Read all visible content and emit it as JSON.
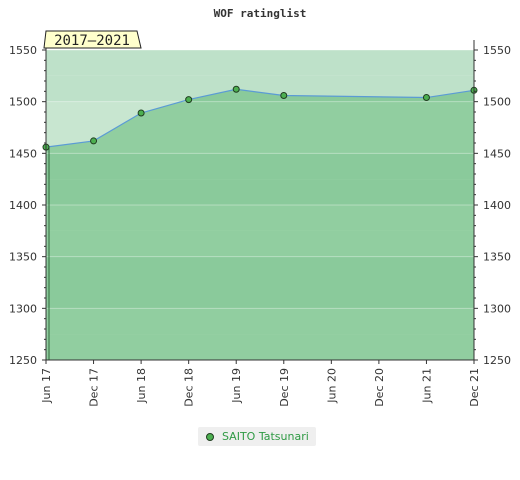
{
  "chart_data": {
    "type": "line",
    "title": "WOF ratinglist",
    "period_label": "2017–2021",
    "x": [
      "Jun 17",
      "Dec 17",
      "Jun 18",
      "Dec 18",
      "Jun 19",
      "Dec 19",
      "Jun 20",
      "Dec 20",
      "Jun 21",
      "Dec 21"
    ],
    "series": [
      {
        "name": "SAITO Tatsunari",
        "points": [
          {
            "x": "Jun 17",
            "y": 1456
          },
          {
            "x": "Dec 17",
            "y": 1462
          },
          {
            "x": "Jun 18",
            "y": 1489
          },
          {
            "x": "Dec 18",
            "y": 1502
          },
          {
            "x": "Jun 19",
            "y": 1512
          },
          {
            "x": "Dec 19",
            "y": 1506
          },
          {
            "x": "Jun 21",
            "y": 1504
          },
          {
            "x": "Dec 21",
            "y": 1511
          }
        ]
      }
    ],
    "ylim": [
      1250,
      1550
    ],
    "yticks": [
      1250,
      1300,
      1350,
      1400,
      1450,
      1500,
      1550
    ],
    "y_axis_both_sides": true,
    "grid": true,
    "legend_position": "bottom-center",
    "colors": {
      "line": "#5b9bd5",
      "area": "#7cc58e",
      "band_a": "#8fcc9f",
      "band_b": "#7ac290",
      "marker_fill": "#4caf50",
      "marker_stroke": "#1f3d1f",
      "badge_fill": "#ffffcc",
      "legend_text": "#2f9a44"
    }
  }
}
